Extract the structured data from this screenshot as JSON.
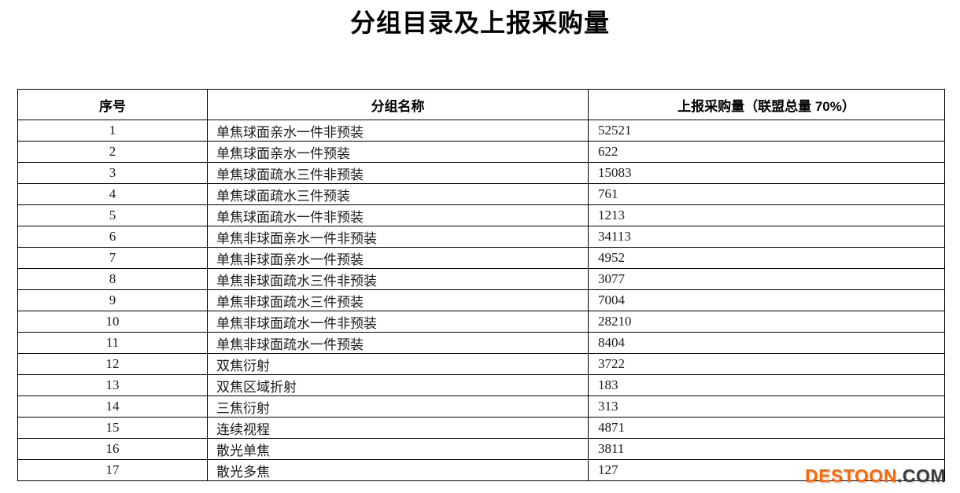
{
  "page": {
    "title": "分组目录及上报采购量"
  },
  "table": {
    "columns": [
      "序号",
      "分组名称",
      "上报采购量（联盟总量 70%）"
    ],
    "rows": [
      {
        "no": "1",
        "name": "单焦球面亲水一件非预装",
        "qty": "52521"
      },
      {
        "no": "2",
        "name": "单焦球面亲水一件预装",
        "qty": "622"
      },
      {
        "no": "3",
        "name": "单焦球面疏水三件非预装",
        "qty": "15083"
      },
      {
        "no": "4",
        "name": "单焦球面疏水三件预装",
        "qty": "761"
      },
      {
        "no": "5",
        "name": "单焦球面疏水一件非预装",
        "qty": "1213"
      },
      {
        "no": "6",
        "name": "单焦非球面亲水一件非预装",
        "qty": "34113"
      },
      {
        "no": "7",
        "name": "单焦非球面亲水一件预装",
        "qty": "4952"
      },
      {
        "no": "8",
        "name": "单焦非球面疏水三件非预装",
        "qty": "3077"
      },
      {
        "no": "9",
        "name": "单焦非球面疏水三件预装",
        "qty": "7004"
      },
      {
        "no": "10",
        "name": "单焦非球面疏水一件非预装",
        "qty": "28210"
      },
      {
        "no": "11",
        "name": "单焦非球面疏水一件预装",
        "qty": "8404"
      },
      {
        "no": "12",
        "name": "双焦衍射",
        "qty": "3722"
      },
      {
        "no": "13",
        "name": "双焦区域折射",
        "qty": "183"
      },
      {
        "no": "14",
        "name": "三焦衍射",
        "qty": "313"
      },
      {
        "no": "15",
        "name": "连续视程",
        "qty": "4871"
      },
      {
        "no": "16",
        "name": "散光单焦",
        "qty": "3811"
      },
      {
        "no": "17",
        "name": "散光多焦",
        "qty": "127"
      }
    ]
  },
  "watermark": {
    "brand": "DESTOON",
    "suffix": ".COM",
    "brand_color": "#ff6600",
    "suffix_color": "#3a3a3a"
  }
}
